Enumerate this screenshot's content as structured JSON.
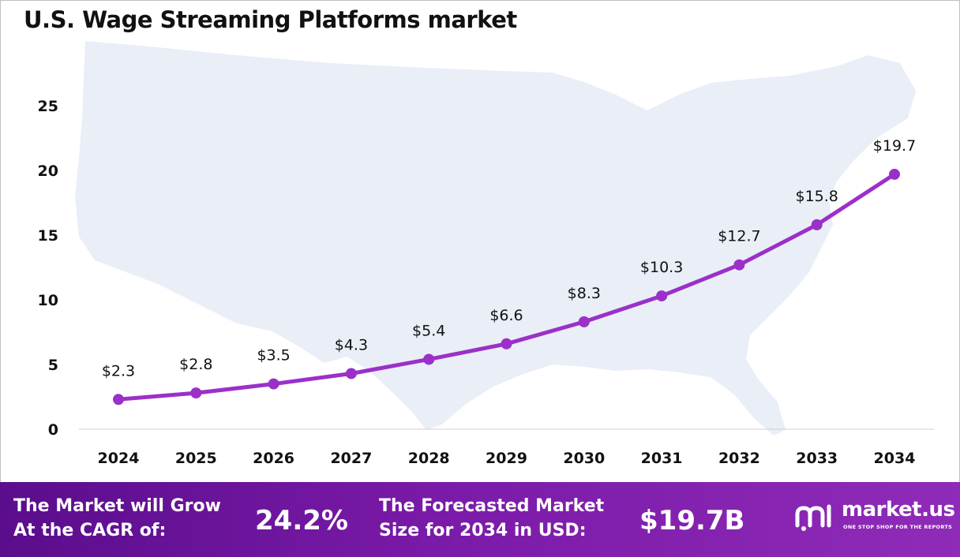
{
  "title": "U.S. Wage Streaming Platforms market",
  "chart_data": {
    "type": "line",
    "title": "U.S. Wage Streaming Platforms market",
    "xlabel": "",
    "ylabel": "",
    "x": [
      "2024",
      "2025",
      "2026",
      "2027",
      "2028",
      "2029",
      "2030",
      "2031",
      "2032",
      "2033",
      "2034"
    ],
    "series": [
      {
        "values": [
          2.3,
          2.8,
          3.5,
          4.3,
          5.4,
          6.6,
          8.3,
          10.3,
          12.7,
          15.8,
          19.7
        ]
      }
    ],
    "data_labels": [
      "$2.3",
      "$2.8",
      "$3.5",
      "$4.3",
      "$5.4",
      "$6.6",
      "$8.3",
      "$10.3",
      "$12.7",
      "$15.8",
      "$19.7"
    ],
    "yticks": [
      "0",
      "5",
      "10",
      "15",
      "20",
      "25"
    ],
    "ylim": [
      0,
      25
    ],
    "grid": false,
    "line_color": "#9b30c8",
    "background_shape": "map-of-united-states"
  },
  "footer": {
    "cagr_label": "The Market will Grow\nAt the CAGR of:",
    "cagr_value": "24.2%",
    "forecast_label": "The Forecasted Market\nSize for 2034 in USD:",
    "forecast_value": "$19.7B",
    "brand_name": "market.us",
    "brand_tagline": "ONE STOP SHOP FOR THE REPORTS",
    "brand_icon": "market-us-logo-icon"
  },
  "colors": {
    "accent": "#9b30c8",
    "footer_start": "#5a0d8c",
    "footer_end": "#8f2bb8",
    "map_fill": "#e9eef7"
  }
}
